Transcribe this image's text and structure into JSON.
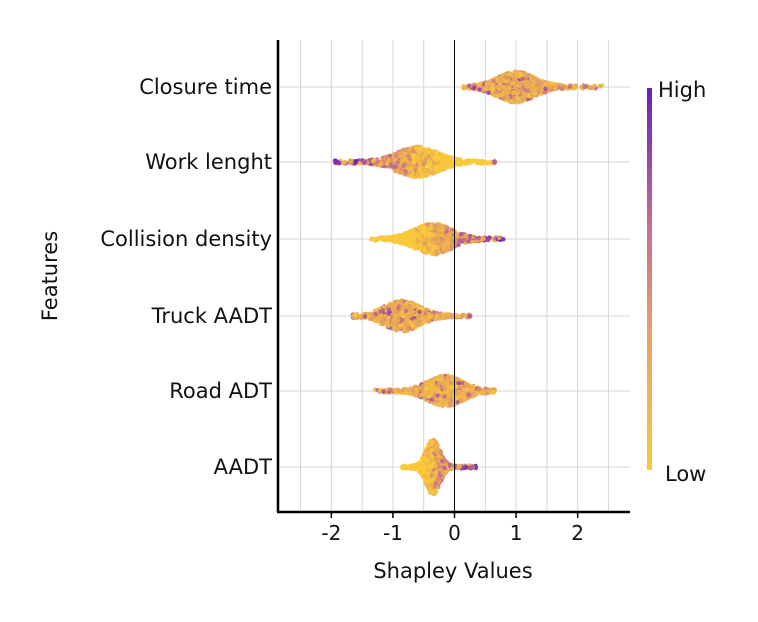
{
  "chart_data": {
    "type": "scatter",
    "subtype": "shap-beeswarm",
    "title": "",
    "xlabel": "Shapley Values",
    "ylabel": "Features",
    "xlim": [
      -2.85,
      2.85
    ],
    "xticks": [
      -2,
      -1,
      0,
      1,
      2
    ],
    "xtick_labels": [
      "-2",
      "-1",
      "0",
      "1",
      "2"
    ],
    "grid": true,
    "features": [
      {
        "name": "Closure time",
        "min": 0.15,
        "max": 2.4,
        "center": 1.0,
        "spread": 0.32,
        "high_direction": "mixed",
        "outliers": []
      },
      {
        "name": "Work lenght",
        "min": -1.95,
        "max": 0.65,
        "center": -0.6,
        "spread": 0.35,
        "high_direction": "negative",
        "outliers": [
          0.65
        ]
      },
      {
        "name": "Collision density",
        "min": -1.35,
        "max": 0.8,
        "center": -0.35,
        "spread": 0.32,
        "high_direction": "positive",
        "outliers": []
      },
      {
        "name": "Truck AADT",
        "min": -1.65,
        "max": 0.25,
        "center": -0.85,
        "spread": 0.3,
        "high_direction": "mixed",
        "outliers": [
          0.25
        ]
      },
      {
        "name": "Road ADT",
        "min": -1.3,
        "max": 0.65,
        "center": -0.15,
        "spread": 0.3,
        "high_direction": "mixed",
        "outliers": []
      },
      {
        "name": "AADT",
        "min": -0.85,
        "max": 0.35,
        "center": -0.35,
        "spread": 0.12,
        "high_direction": "positive",
        "outliers": [
          0.3
        ]
      }
    ],
    "colorbar": {
      "high_label": "High",
      "low_label": "Low",
      "high_color": "#6a1fb8",
      "low_color": "#f9c93a"
    },
    "mid_color": "#cc6f8a"
  }
}
